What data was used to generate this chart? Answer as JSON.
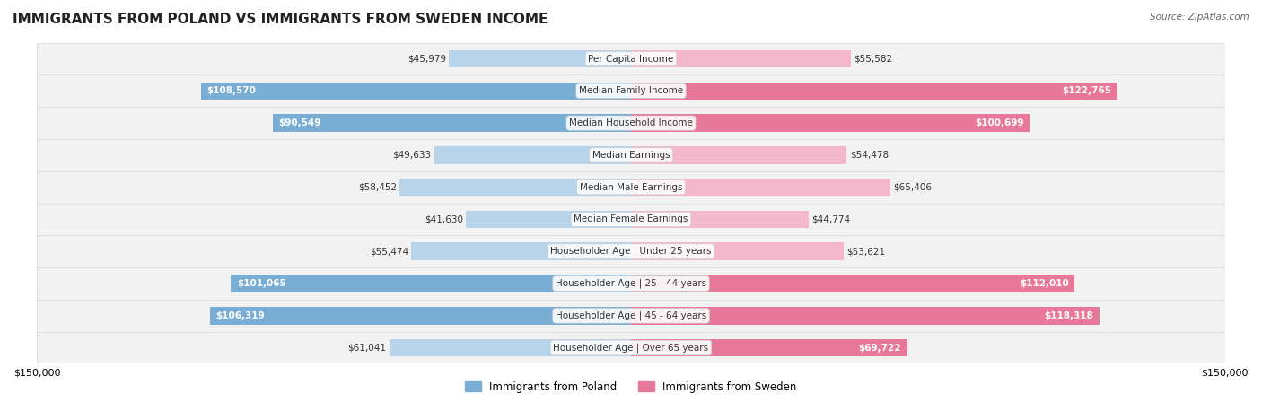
{
  "title": "IMMIGRANTS FROM POLAND VS IMMIGRANTS FROM SWEDEN INCOME",
  "source": "Source: ZipAtlas.com",
  "categories": [
    "Per Capita Income",
    "Median Family Income",
    "Median Household Income",
    "Median Earnings",
    "Median Male Earnings",
    "Median Female Earnings",
    "Householder Age | Under 25 years",
    "Householder Age | 25 - 44 years",
    "Householder Age | 45 - 64 years",
    "Householder Age | Over 65 years"
  ],
  "poland_values": [
    45979,
    108570,
    90549,
    49633,
    58452,
    41630,
    55474,
    101065,
    106319,
    61041
  ],
  "sweden_values": [
    55582,
    122765,
    100699,
    54478,
    65406,
    44774,
    53621,
    112010,
    118318,
    69722
  ],
  "poland_labels": [
    "$45,979",
    "$108,570",
    "$90,549",
    "$49,633",
    "$58,452",
    "$41,630",
    "$55,474",
    "$101,065",
    "$106,319",
    "$61,041"
  ],
  "sweden_labels": [
    "$55,582",
    "$122,765",
    "$100,699",
    "$54,478",
    "$65,406",
    "$44,774",
    "$53,621",
    "$112,010",
    "$118,318",
    "$69,722"
  ],
  "poland_color_fill": "#a8c4e0",
  "poland_color_solid": "#6699cc",
  "sweden_color_fill": "#f0a8be",
  "sweden_color_solid": "#e06080",
  "max_value": 150000,
  "bar_height": 0.55,
  "row_bg_color": "#f0f0f0",
  "row_bg_alt": "#ffffff",
  "title_fontsize": 13,
  "label_fontsize": 8.5,
  "axis_label_fontsize": 8,
  "legend_poland": "Immigrants from Poland",
  "legend_sweden": "Immigrants from Sweden"
}
